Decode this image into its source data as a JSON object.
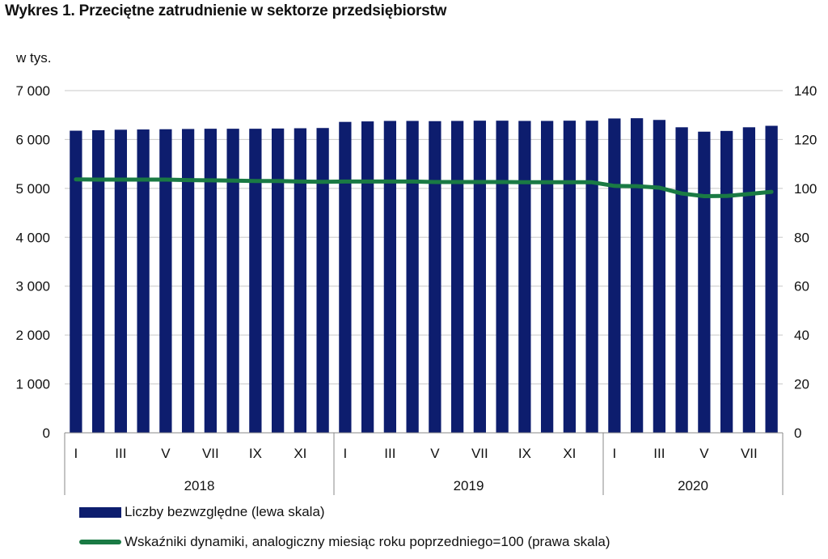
{
  "chart_data": {
    "type": "bar+line",
    "title": "Wykres 1. Przeciętne zatrudnienie w sektorze przedsiębiorstw",
    "left_axis": {
      "unit": "w tys.",
      "ylim": [
        0,
        7000
      ],
      "ticks": [
        "7 000",
        "6 000",
        "5 000",
        "4 000",
        "3 000",
        "2 000",
        "1 000",
        "0"
      ]
    },
    "right_axis": {
      "ylim": [
        0,
        140
      ],
      "ticks": [
        "140",
        "120",
        "100",
        "80",
        "60",
        "40",
        "20",
        "0"
      ]
    },
    "month_labels": [
      "I",
      "",
      "III",
      "",
      "V",
      "",
      "VII",
      "",
      "IX",
      "",
      "XI",
      "",
      "I",
      "",
      "III",
      "",
      "V",
      "",
      "VII",
      "",
      "IX",
      "",
      "XI",
      "",
      "I",
      "",
      "III",
      "",
      "V",
      "",
      "VII",
      ""
    ],
    "years": [
      {
        "label": "2018",
        "months": 12
      },
      {
        "label": "2019",
        "months": 12
      },
      {
        "label": "2020",
        "months": 8
      }
    ],
    "series": [
      {
        "name": "Liczby bezwzględne (lewa skala)",
        "type": "bar",
        "axis": "left",
        "color": "#0d1d6e",
        "values": [
          6180,
          6190,
          6200,
          6205,
          6210,
          6215,
          6220,
          6220,
          6220,
          6225,
          6230,
          6235,
          6360,
          6370,
          6380,
          6380,
          6375,
          6380,
          6385,
          6385,
          6380,
          6380,
          6385,
          6385,
          6430,
          6435,
          6400,
          6250,
          6160,
          6175,
          6250,
          6280
        ]
      },
      {
        "name": "Wskaźniki dynamiki, analogiczny miesiąc roku poprzedniego=100 (prawa skala)",
        "type": "line",
        "axis": "right",
        "color": "#1a7a44",
        "values": [
          103.7,
          103.6,
          103.6,
          103.6,
          103.6,
          103.4,
          103.3,
          103.2,
          103.0,
          103.0,
          102.8,
          102.7,
          102.8,
          102.8,
          102.8,
          102.8,
          102.6,
          102.6,
          102.6,
          102.6,
          102.5,
          102.5,
          102.5,
          102.5,
          101.0,
          100.9,
          100.3,
          97.9,
          96.8,
          96.9,
          97.7,
          98.6
        ]
      }
    ]
  }
}
